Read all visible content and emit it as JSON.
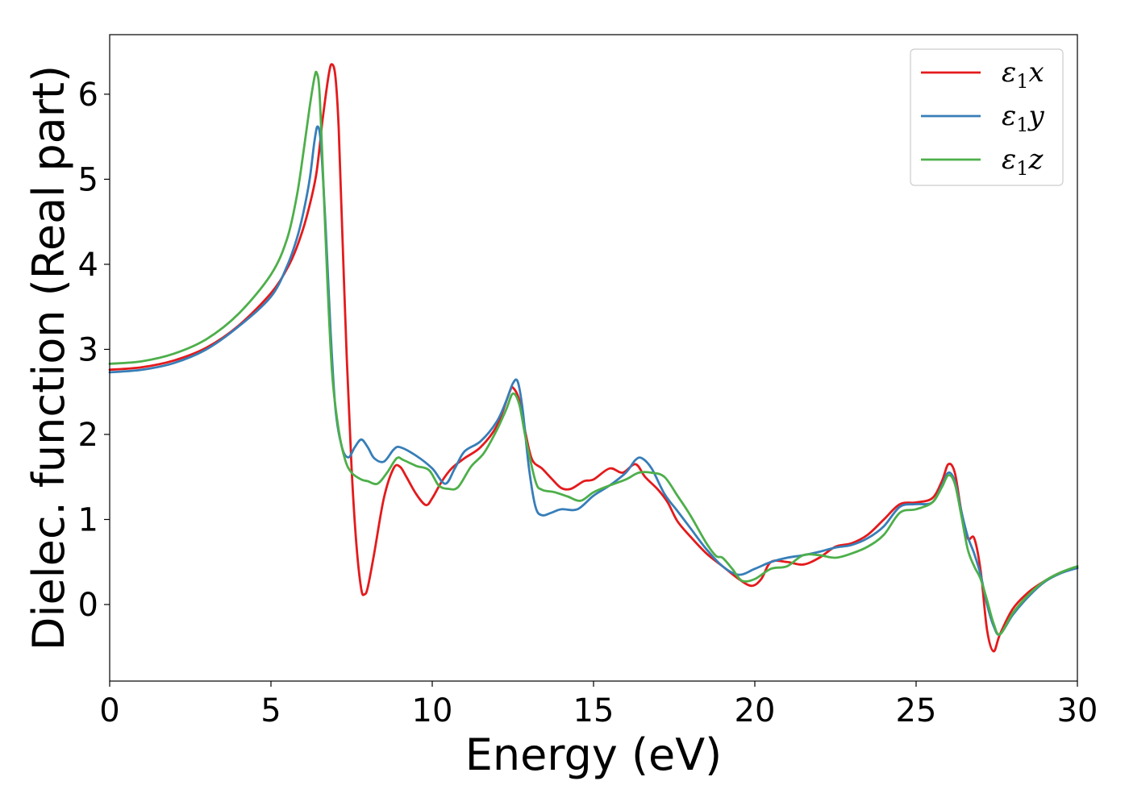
{
  "chart_data": {
    "type": "line",
    "xlabel": "Energy (eV)",
    "ylabel": "Dielec. function (Real part)",
    "xlim": [
      0,
      30
    ],
    "ylim": [
      -0.9,
      6.7
    ],
    "xticks": [
      0,
      5,
      10,
      15,
      20,
      25,
      30
    ],
    "yticks": [
      0,
      1,
      2,
      3,
      4,
      5,
      6
    ],
    "grid": false,
    "legend_position": "top-right",
    "series": [
      {
        "name": "ε1x",
        "base": "ε",
        "sub": "1",
        "var": "x",
        "color": "#e41a1c",
        "points": [
          [
            0,
            2.76
          ],
          [
            1,
            2.79
          ],
          [
            2,
            2.87
          ],
          [
            3,
            3.02
          ],
          [
            4,
            3.28
          ],
          [
            5,
            3.66
          ],
          [
            5.5,
            3.95
          ],
          [
            5.8,
            4.2
          ],
          [
            6.1,
            4.55
          ],
          [
            6.4,
            5.05
          ],
          [
            6.6,
            5.7
          ],
          [
            6.8,
            6.25
          ],
          [
            6.9,
            6.35
          ],
          [
            7.0,
            6.2
          ],
          [
            7.1,
            5.6
          ],
          [
            7.2,
            4.5
          ],
          [
            7.35,
            2.9
          ],
          [
            7.5,
            1.6
          ],
          [
            7.65,
            0.7
          ],
          [
            7.8,
            0.18
          ],
          [
            7.9,
            0.12
          ],
          [
            8.0,
            0.2
          ],
          [
            8.2,
            0.6
          ],
          [
            8.5,
            1.25
          ],
          [
            8.8,
            1.6
          ],
          [
            9.0,
            1.62
          ],
          [
            9.2,
            1.5
          ],
          [
            9.5,
            1.3
          ],
          [
            9.8,
            1.17
          ],
          [
            10.0,
            1.25
          ],
          [
            10.3,
            1.45
          ],
          [
            10.6,
            1.6
          ],
          [
            11.0,
            1.72
          ],
          [
            11.5,
            1.85
          ],
          [
            12.0,
            2.1
          ],
          [
            12.4,
            2.5
          ],
          [
            12.5,
            2.55
          ],
          [
            12.7,
            2.4
          ],
          [
            12.9,
            2.0
          ],
          [
            13.1,
            1.7
          ],
          [
            13.4,
            1.6
          ],
          [
            13.7,
            1.48
          ],
          [
            14.0,
            1.37
          ],
          [
            14.3,
            1.36
          ],
          [
            14.7,
            1.45
          ],
          [
            15.0,
            1.47
          ],
          [
            15.5,
            1.6
          ],
          [
            15.9,
            1.55
          ],
          [
            16.3,
            1.65
          ],
          [
            16.6,
            1.5
          ],
          [
            17.0,
            1.35
          ],
          [
            17.3,
            1.2
          ],
          [
            17.6,
            0.98
          ],
          [
            18.0,
            0.8
          ],
          [
            18.5,
            0.6
          ],
          [
            19.0,
            0.45
          ],
          [
            19.5,
            0.3
          ],
          [
            19.9,
            0.22
          ],
          [
            20.2,
            0.3
          ],
          [
            20.5,
            0.5
          ],
          [
            21.0,
            0.5
          ],
          [
            21.5,
            0.47
          ],
          [
            22.0,
            0.55
          ],
          [
            22.5,
            0.68
          ],
          [
            23.0,
            0.72
          ],
          [
            23.5,
            0.82
          ],
          [
            24.0,
            1.0
          ],
          [
            24.5,
            1.18
          ],
          [
            25.0,
            1.2
          ],
          [
            25.5,
            1.25
          ],
          [
            25.8,
            1.45
          ],
          [
            26.0,
            1.65
          ],
          [
            26.2,
            1.55
          ],
          [
            26.4,
            1.1
          ],
          [
            26.6,
            0.78
          ],
          [
            26.8,
            0.78
          ],
          [
            27.0,
            0.4
          ],
          [
            27.2,
            -0.3
          ],
          [
            27.4,
            -0.55
          ],
          [
            27.6,
            -0.35
          ],
          [
            28.0,
            -0.05
          ],
          [
            28.5,
            0.15
          ],
          [
            29.0,
            0.28
          ],
          [
            29.5,
            0.38
          ],
          [
            30,
            0.43
          ]
        ]
      },
      {
        "name": "ε1y",
        "base": "ε",
        "sub": "1",
        "var": "y",
        "color": "#377eb8",
        "points": [
          [
            0,
            2.73
          ],
          [
            1,
            2.76
          ],
          [
            2,
            2.84
          ],
          [
            3,
            3.0
          ],
          [
            4,
            3.27
          ],
          [
            5,
            3.62
          ],
          [
            5.5,
            3.98
          ],
          [
            5.8,
            4.3
          ],
          [
            6.0,
            4.6
          ],
          [
            6.2,
            5.0
          ],
          [
            6.35,
            5.45
          ],
          [
            6.45,
            5.62
          ],
          [
            6.55,
            5.4
          ],
          [
            6.7,
            4.4
          ],
          [
            6.85,
            3.2
          ],
          [
            7.0,
            2.3
          ],
          [
            7.2,
            1.85
          ],
          [
            7.4,
            1.73
          ],
          [
            7.6,
            1.85
          ],
          [
            7.8,
            1.94
          ],
          [
            8.0,
            1.85
          ],
          [
            8.2,
            1.72
          ],
          [
            8.5,
            1.68
          ],
          [
            8.8,
            1.82
          ],
          [
            9.0,
            1.85
          ],
          [
            9.5,
            1.75
          ],
          [
            10.0,
            1.6
          ],
          [
            10.4,
            1.42
          ],
          [
            10.7,
            1.6
          ],
          [
            11.0,
            1.8
          ],
          [
            11.5,
            1.92
          ],
          [
            12.0,
            2.15
          ],
          [
            12.3,
            2.4
          ],
          [
            12.5,
            2.6
          ],
          [
            12.65,
            2.62
          ],
          [
            12.8,
            2.3
          ],
          [
            13.0,
            1.6
          ],
          [
            13.2,
            1.15
          ],
          [
            13.4,
            1.05
          ],
          [
            13.7,
            1.08
          ],
          [
            14.0,
            1.12
          ],
          [
            14.5,
            1.12
          ],
          [
            15.0,
            1.28
          ],
          [
            15.5,
            1.4
          ],
          [
            16.0,
            1.55
          ],
          [
            16.3,
            1.7
          ],
          [
            16.5,
            1.72
          ],
          [
            16.8,
            1.6
          ],
          [
            17.2,
            1.3
          ],
          [
            17.6,
            1.1
          ],
          [
            18.0,
            0.9
          ],
          [
            18.5,
            0.65
          ],
          [
            19.0,
            0.45
          ],
          [
            19.5,
            0.35
          ],
          [
            20.0,
            0.42
          ],
          [
            20.5,
            0.5
          ],
          [
            21.0,
            0.55
          ],
          [
            21.5,
            0.58
          ],
          [
            22.0,
            0.62
          ],
          [
            22.5,
            0.67
          ],
          [
            23.0,
            0.7
          ],
          [
            23.5,
            0.78
          ],
          [
            24.0,
            0.92
          ],
          [
            24.5,
            1.15
          ],
          [
            25.0,
            1.18
          ],
          [
            25.5,
            1.2
          ],
          [
            25.8,
            1.4
          ],
          [
            26.0,
            1.55
          ],
          [
            26.2,
            1.45
          ],
          [
            26.4,
            1.1
          ],
          [
            26.6,
            0.8
          ],
          [
            26.8,
            0.6
          ],
          [
            27.0,
            0.35
          ],
          [
            27.2,
            0.0
          ],
          [
            27.4,
            -0.25
          ],
          [
            27.6,
            -0.35
          ],
          [
            28.0,
            -0.12
          ],
          [
            28.5,
            0.1
          ],
          [
            29.0,
            0.27
          ],
          [
            29.5,
            0.37
          ],
          [
            30,
            0.43
          ]
        ]
      },
      {
        "name": "ε1z",
        "base": "ε",
        "sub": "1",
        "var": "z",
        "color": "#4daf4a",
        "points": [
          [
            0,
            2.83
          ],
          [
            1,
            2.86
          ],
          [
            2,
            2.95
          ],
          [
            3,
            3.12
          ],
          [
            4,
            3.42
          ],
          [
            5,
            3.88
          ],
          [
            5.5,
            4.3
          ],
          [
            5.8,
            4.8
          ],
          [
            6.0,
            5.3
          ],
          [
            6.2,
            5.85
          ],
          [
            6.35,
            6.2
          ],
          [
            6.42,
            6.25
          ],
          [
            6.5,
            6.05
          ],
          [
            6.6,
            5.2
          ],
          [
            6.75,
            3.8
          ],
          [
            6.9,
            2.7
          ],
          [
            7.1,
            2.05
          ],
          [
            7.3,
            1.7
          ],
          [
            7.5,
            1.55
          ],
          [
            7.8,
            1.47
          ],
          [
            8.0,
            1.45
          ],
          [
            8.3,
            1.42
          ],
          [
            8.6,
            1.55
          ],
          [
            8.9,
            1.72
          ],
          [
            9.1,
            1.7
          ],
          [
            9.5,
            1.63
          ],
          [
            9.9,
            1.58
          ],
          [
            10.2,
            1.4
          ],
          [
            10.5,
            1.36
          ],
          [
            10.8,
            1.38
          ],
          [
            11.2,
            1.62
          ],
          [
            11.6,
            1.78
          ],
          [
            12.0,
            2.05
          ],
          [
            12.3,
            2.3
          ],
          [
            12.5,
            2.48
          ],
          [
            12.7,
            2.35
          ],
          [
            12.9,
            1.95
          ],
          [
            13.2,
            1.45
          ],
          [
            13.4,
            1.35
          ],
          [
            13.8,
            1.32
          ],
          [
            14.2,
            1.27
          ],
          [
            14.6,
            1.22
          ],
          [
            15.0,
            1.32
          ],
          [
            15.5,
            1.4
          ],
          [
            16.0,
            1.47
          ],
          [
            16.4,
            1.55
          ],
          [
            16.8,
            1.55
          ],
          [
            17.2,
            1.5
          ],
          [
            17.6,
            1.28
          ],
          [
            18.0,
            1.05
          ],
          [
            18.5,
            0.72
          ],
          [
            18.8,
            0.57
          ],
          [
            19.0,
            0.55
          ],
          [
            19.3,
            0.42
          ],
          [
            19.6,
            0.28
          ],
          [
            20.0,
            0.3
          ],
          [
            20.5,
            0.42
          ],
          [
            21.0,
            0.45
          ],
          [
            21.5,
            0.58
          ],
          [
            22.0,
            0.58
          ],
          [
            22.5,
            0.55
          ],
          [
            23.0,
            0.6
          ],
          [
            23.5,
            0.68
          ],
          [
            24.0,
            0.82
          ],
          [
            24.5,
            1.08
          ],
          [
            25.0,
            1.12
          ],
          [
            25.5,
            1.2
          ],
          [
            25.8,
            1.38
          ],
          [
            26.0,
            1.52
          ],
          [
            26.2,
            1.42
          ],
          [
            26.4,
            1.05
          ],
          [
            26.6,
            0.65
          ],
          [
            26.8,
            0.45
          ],
          [
            27.0,
            0.3
          ],
          [
            27.2,
            0.05
          ],
          [
            27.4,
            -0.22
          ],
          [
            27.6,
            -0.35
          ],
          [
            28.0,
            -0.1
          ],
          [
            28.5,
            0.12
          ],
          [
            29.0,
            0.28
          ],
          [
            29.5,
            0.38
          ],
          [
            30,
            0.45
          ]
        ]
      }
    ]
  }
}
